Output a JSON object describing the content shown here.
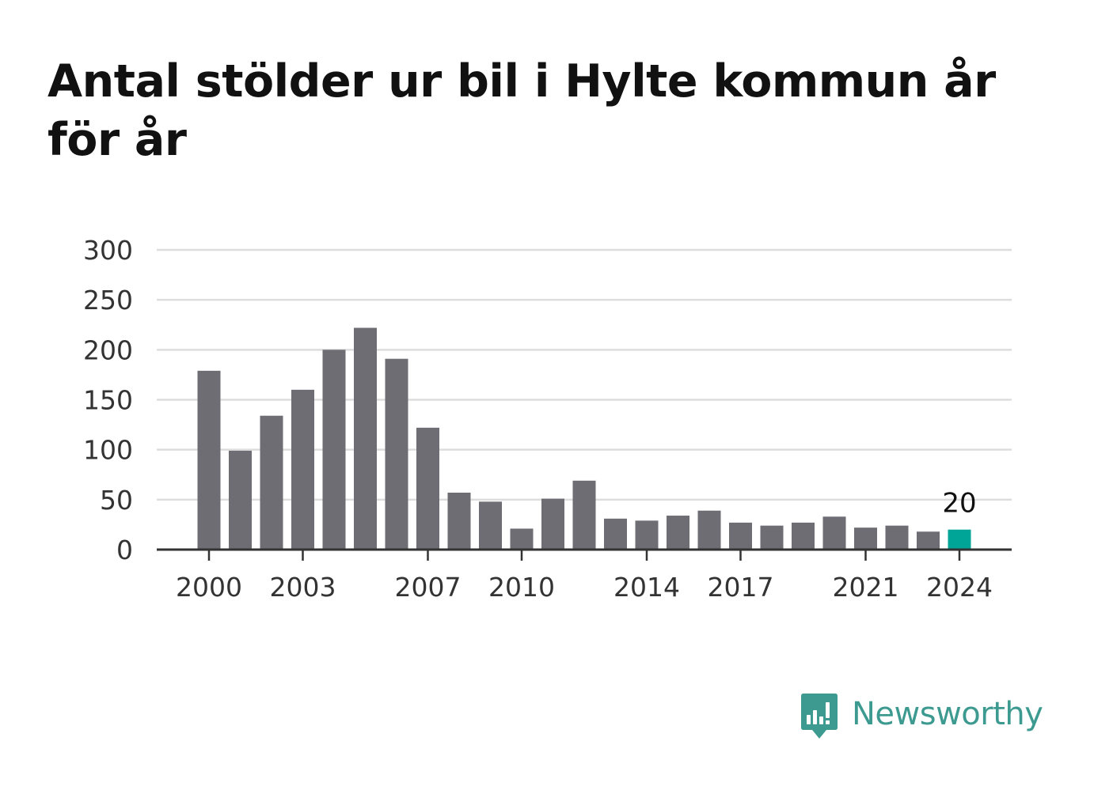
{
  "chart_data": {
    "type": "bar",
    "title": "Antal stölder ur bil i Hylte kommun år för år",
    "x": [
      2000,
      2001,
      2002,
      2003,
      2004,
      2005,
      2006,
      2007,
      2008,
      2009,
      2010,
      2011,
      2012,
      2013,
      2014,
      2015,
      2016,
      2017,
      2018,
      2019,
      2020,
      2021,
      2022,
      2023,
      2024
    ],
    "values": [
      179,
      99,
      134,
      160,
      200,
      222,
      191,
      122,
      57,
      48,
      21,
      51,
      69,
      31,
      29,
      34,
      39,
      27,
      24,
      27,
      33,
      22,
      24,
      18,
      20
    ],
    "x_tick_labels": [
      "2000",
      "2003",
      "2007",
      "2010",
      "2014",
      "2017",
      "2021",
      "2024"
    ],
    "y_ticks": [
      0,
      50,
      100,
      150,
      200,
      250,
      300
    ],
    "ylim": [
      0,
      300
    ],
    "xlabel": "",
    "ylabel": "",
    "grid": true,
    "highlight": {
      "year": 2024,
      "label": "20"
    },
    "colors": {
      "bar": "#6e6d73",
      "highlight": "#00a598",
      "grid": "#dddddd",
      "axis": "#333333",
      "tick_text": "#333333"
    }
  },
  "brand": {
    "name": "Newsworthy",
    "logo_icon": "newsworthy-logo-icon",
    "color": "#3d9a90"
  }
}
